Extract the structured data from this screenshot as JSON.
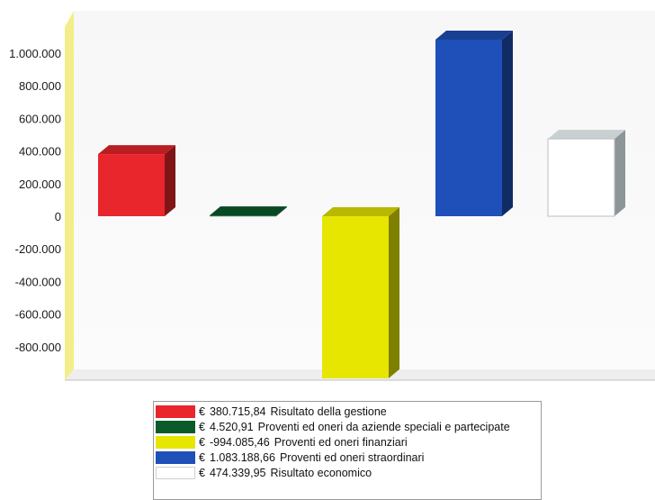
{
  "chart_data": {
    "type": "bar",
    "title": "",
    "xlabel": "",
    "ylabel": "",
    "ylim": [
      -980000,
      1120000
    ],
    "yticks": [
      1000000,
      800000,
      600000,
      400000,
      200000,
      0,
      -200000,
      -400000,
      -600000,
      -800000
    ],
    "ytick_labels": [
      "1.000.000",
      "800.000",
      "600.000",
      "400.000",
      "200.000",
      "0",
      "-200.000",
      "-400.000",
      "-600.000",
      "-800.000"
    ],
    "categories": [
      "Risultato della gestione",
      "Proventi ed oneri da aziende speciali e partecipate",
      "Proventi ed oneri finanziari",
      "Proventi ed oneri straordinari",
      "Risultato economico"
    ],
    "values": [
      380715.84,
      4520.91,
      -994085.46,
      1083188.66,
      474339.95
    ],
    "value_labels": [
      "380.715,84",
      "4.520,91",
      "-994.085,46",
      "1.083.188,66",
      "474.339,95"
    ],
    "currency": "€",
    "colors": [
      "#e8262b",
      "#0a5a2a",
      "#e6e600",
      "#1f4fb8",
      "#ffffff"
    ],
    "grid": false,
    "legend_position": "bottom"
  }
}
